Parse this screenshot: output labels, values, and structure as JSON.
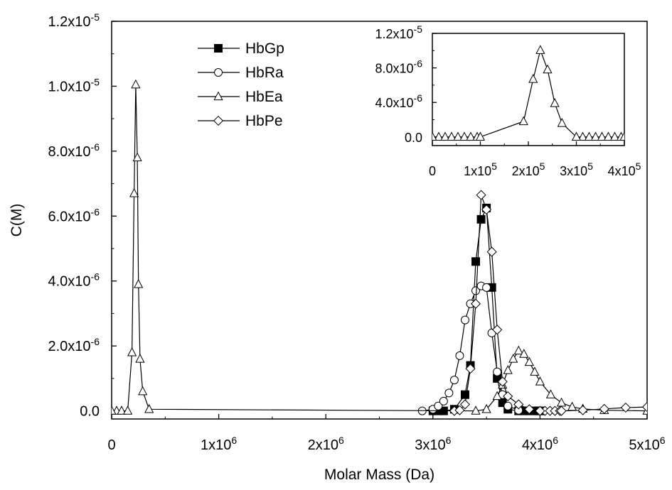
{
  "chart_data": [
    {
      "type": "line",
      "xlabel": "Molar Mass (Da)",
      "ylabel": "C(M)",
      "xlim": [
        0,
        5000000
      ],
      "ylim": [
        -2.5e-07,
        1.2e-05
      ],
      "x_ticks": [
        {
          "value": 0,
          "mantissa": "0",
          "exp": ""
        },
        {
          "value": 1000000,
          "mantissa": "1x10",
          "exp": "6"
        },
        {
          "value": 2000000,
          "mantissa": "2x10",
          "exp": "6"
        },
        {
          "value": 3000000,
          "mantissa": "3x10",
          "exp": "6"
        },
        {
          "value": 4000000,
          "mantissa": "4x10",
          "exp": "6"
        },
        {
          "value": 5000000,
          "mantissa": "5x10",
          "exp": "6"
        }
      ],
      "y_ticks": [
        {
          "value": 0,
          "mantissa": "0.0",
          "exp": ""
        },
        {
          "value": 2e-06,
          "mantissa": "2.0x10",
          "exp": "-6"
        },
        {
          "value": 4e-06,
          "mantissa": "4.0x10",
          "exp": "-6"
        },
        {
          "value": 6e-06,
          "mantissa": "6.0x10",
          "exp": "-6"
        },
        {
          "value": 8e-06,
          "mantissa": "8.0x10",
          "exp": "-6"
        },
        {
          "value": 1e-05,
          "mantissa": "1.0x10",
          "exp": "-5"
        },
        {
          "value": 1.2e-05,
          "mantissa": "1.2x10",
          "exp": "-5"
        }
      ],
      "legend_position": "top-left",
      "series": [
        {
          "name": "HbGp",
          "marker": "filled-square",
          "x": [
            3000000,
            3100000,
            3200000,
            3300000,
            3350000,
            3400000,
            3450000,
            3500000,
            3550000,
            3600000,
            3650000,
            3700000,
            3800000,
            4000000
          ],
          "y": [
            0,
            0,
            5e-08,
            5e-07,
            1.4e-06,
            4.6e-06,
            5.9e-06,
            6.25e-06,
            3.8e-06,
            1e-06,
            2.5e-07,
            5e-08,
            0,
            0
          ]
        },
        {
          "name": "HbRa",
          "marker": "open-circle",
          "x": [
            2900000,
            3000000,
            3050000,
            3100000,
            3150000,
            3200000,
            3250000,
            3300000,
            3350000,
            3400000,
            3450000,
            3500000,
            3550000,
            3600000,
            3650000,
            3700000,
            3800000,
            4000000
          ],
          "y": [
            0,
            5e-08,
            1.5e-07,
            3e-07,
            5.5e-07,
            9.5e-07,
            1.7e-06,
            2.8e-06,
            3.3e-06,
            3.7e-06,
            3.85e-06,
            3.8e-06,
            2.4e-06,
            1.2e-06,
            5e-07,
            1.5e-07,
            2e-08,
            0
          ]
        },
        {
          "name": "HbEa",
          "marker": "open-triangle",
          "x": [
            0,
            150000,
            190000,
            210000,
            225000,
            240000,
            250000,
            265000,
            290000,
            350000,
            3400000,
            3500000,
            3600000,
            3650000,
            3700000,
            3750000,
            3800000,
            3850000,
            3900000,
            3950000,
            4000000,
            4100000,
            4200000,
            4300000,
            4400000,
            4600000,
            5000000
          ],
          "y": [
            0,
            0,
            1.8e-06,
            6.7e-06,
            1.005e-05,
            7.8e-06,
            3.9e-06,
            1.6e-06,
            6e-07,
            5e-08,
            0,
            5e-08,
            4.5e-07,
            8e-07,
            1.25e-06,
            1.6e-06,
            1.85e-06,
            1.75e-06,
            1.5e-06,
            1.2e-06,
            9e-07,
            5e-07,
            2.5e-07,
            1.2e-07,
            6e-08,
            2e-08,
            0
          ]
        },
        {
          "name": "HbPe",
          "marker": "open-diamond",
          "x": [
            3200000,
            3250000,
            3300000,
            3350000,
            3400000,
            3450000,
            3500000,
            3550000,
            3600000,
            3650000,
            3700000,
            3800000,
            3900000,
            4000000,
            4200000,
            4400000,
            4600000,
            4800000,
            5000000
          ],
          "y": [
            0,
            2e-08,
            2e-07,
            1.3e-06,
            3.3e-06,
            6.65e-06,
            6.2e-06,
            4.9e-06,
            2.5e-06,
            9e-07,
            4.5e-07,
            2e-07,
            5e-08,
            0,
            0,
            2e-08,
            6e-08,
            1e-07,
            1.2e-07
          ]
        }
      ]
    },
    {
      "type": "line",
      "role": "inset",
      "xlim": [
        0,
        400000
      ],
      "ylim": [
        -1e-06,
        1.2e-05
      ],
      "x_ticks": [
        {
          "value": 0,
          "mantissa": "0",
          "exp": ""
        },
        {
          "value": 100000,
          "mantissa": "1x10",
          "exp": "5"
        },
        {
          "value": 200000,
          "mantissa": "2x10",
          "exp": "5"
        },
        {
          "value": 300000,
          "mantissa": "3x10",
          "exp": "5"
        },
        {
          "value": 400000,
          "mantissa": "4x10",
          "exp": "5"
        }
      ],
      "y_ticks": [
        {
          "value": 0,
          "mantissa": "0.0",
          "exp": ""
        },
        {
          "value": 4e-06,
          "mantissa": "4.0x10",
          "exp": "-6"
        },
        {
          "value": 8e-06,
          "mantissa": "8.0x10",
          "exp": "-6"
        },
        {
          "value": 1.2e-05,
          "mantissa": "1.2x10",
          "exp": "-5"
        }
      ],
      "series": [
        {
          "name": "HbEa",
          "marker": "open-triangle",
          "x": [
            0,
            100000,
            190000,
            210000,
            225000,
            240000,
            255000,
            270000,
            300000,
            400000
          ],
          "y": [
            0,
            0,
            1.8e-06,
            6.7e-06,
            1.005e-05,
            7.8e-06,
            3.9e-06,
            1.6e-06,
            0,
            0
          ]
        }
      ]
    }
  ]
}
